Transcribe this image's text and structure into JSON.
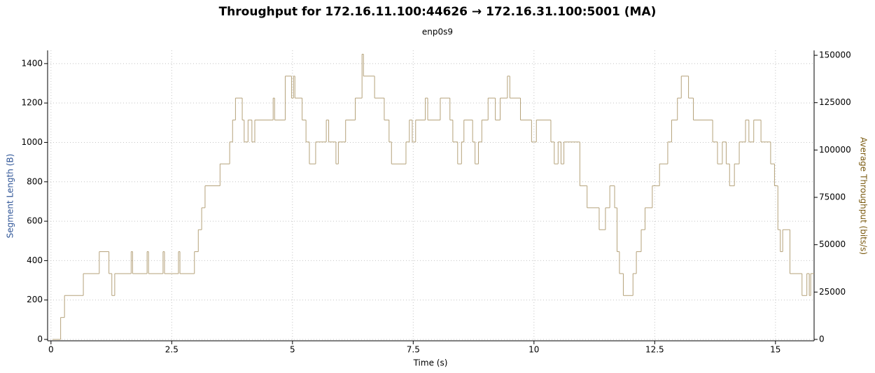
{
  "chart_data": {
    "type": "step",
    "title": "Throughput for 172.16.11.100:44626 → 172.16.31.100:5001 (MA)",
    "subtitle": "enp0s9",
    "x_label": "Time (s)",
    "y_label": "Segment Length (B)",
    "y2_label": "Average Throughput (bits/s)",
    "xlim": [
      -0.07,
      15.8
    ],
    "xticks": [
      0,
      2.5,
      5,
      7.5,
      10,
      12.5,
      15
    ],
    "ylim": [
      -7,
      1467
    ],
    "yticks": [
      0,
      200,
      400,
      600,
      800,
      1000,
      1200,
      1400
    ],
    "y2lim": [
      -740,
      152600
    ],
    "y2ticks": [
      0,
      25000,
      50000,
      75000,
      100000,
      125000,
      150000
    ],
    "grid": true,
    "y_color": "#2f5597",
    "y2_color": "#7a5a10",
    "series": [
      {
        "name": "Average Throughput",
        "color": "#b5a27a",
        "axis": "y2",
        "x": [
          0.03,
          0.2,
          0.28,
          0.67,
          1.0,
          1.2,
          1.26,
          1.32,
          1.66,
          1.69,
          1.99,
          2.02,
          2.32,
          2.35,
          2.64,
          2.67,
          2.97,
          3.05,
          3.12,
          3.19,
          3.5,
          3.7,
          3.76,
          3.82,
          3.96,
          4.0,
          4.08,
          4.16,
          4.22,
          4.6,
          4.63,
          4.85,
          4.98,
          5.02,
          5.05,
          5.2,
          5.28,
          5.35,
          5.48,
          5.7,
          5.75,
          5.9,
          5.95,
          6.1,
          6.3,
          6.44,
          6.47,
          6.7,
          6.9,
          7.0,
          7.05,
          7.35,
          7.42,
          7.48,
          7.55,
          7.75,
          7.8,
          8.06,
          8.26,
          8.32,
          8.42,
          8.5,
          8.55,
          8.73,
          8.78,
          8.85,
          8.92,
          9.05,
          9.2,
          9.3,
          9.45,
          9.5,
          9.72,
          9.95,
          10.05,
          10.35,
          10.42,
          10.5,
          10.56,
          10.62,
          10.95,
          11.1,
          11.35,
          11.48,
          11.57,
          11.67,
          11.72,
          11.77,
          11.85,
          12.05,
          12.12,
          12.22,
          12.3,
          12.45,
          12.6,
          12.77,
          12.85,
          12.97,
          13.05,
          13.2,
          13.3,
          13.7,
          13.8,
          13.9,
          13.98,
          14.05,
          14.15,
          14.25,
          14.38,
          14.45,
          14.55,
          14.7,
          14.9,
          14.98,
          15.05,
          15.1,
          15.15,
          15.3,
          15.55,
          15.65,
          15.7,
          15.73,
          15.8
        ],
        "values": [
          0,
          11584,
          23168,
          34752,
          46336,
          34752,
          23168,
          34752,
          46336,
          34752,
          46336,
          34752,
          46336,
          34752,
          46336,
          34752,
          46336,
          57920,
          69504,
          81088,
          92672,
          104256,
          115840,
          127424,
          115840,
          104256,
          115840,
          104256,
          115840,
          127424,
          115840,
          139008,
          127424,
          139008,
          127424,
          115840,
          104256,
          92672,
          104256,
          115840,
          104256,
          92672,
          104256,
          115840,
          127424,
          150592,
          139008,
          127424,
          115840,
          104256,
          92672,
          104256,
          115840,
          104256,
          115840,
          127424,
          115840,
          127424,
          115840,
          104256,
          92672,
          104256,
          115840,
          104256,
          92672,
          104256,
          115840,
          127424,
          115840,
          127424,
          139008,
          127424,
          115840,
          104256,
          115840,
          104256,
          92672,
          104256,
          92672,
          104256,
          81088,
          69504,
          57920,
          69504,
          81088,
          69504,
          46336,
          34752,
          23168,
          34752,
          46336,
          57920,
          69504,
          81088,
          92672,
          104256,
          115840,
          127424,
          139008,
          127424,
          115840,
          104256,
          92672,
          104256,
          92672,
          81088,
          92672,
          104256,
          115840,
          104256,
          115840,
          104256,
          92672,
          81088,
          57920,
          46336,
          57920,
          34752,
          23168,
          34752,
          23168,
          34752,
          34752
        ]
      }
    ]
  }
}
